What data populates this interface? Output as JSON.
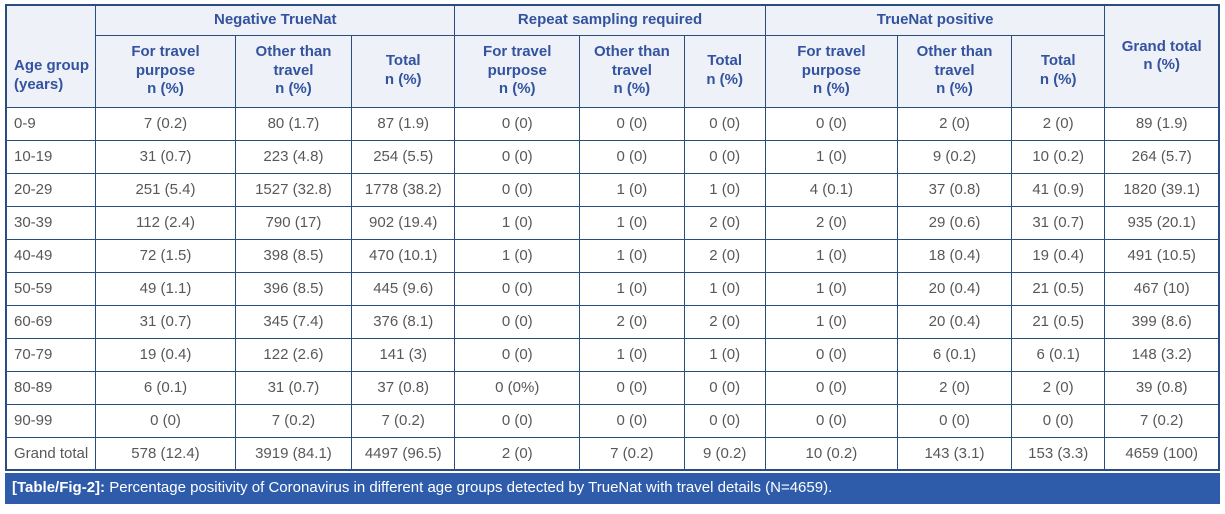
{
  "colors": {
    "border": "#2a4d7f",
    "header_bg": "#eef1f8",
    "header_text": "#33539f",
    "data_text": "#57585a",
    "caption_bg": "#2e5cab",
    "caption_text": "#ffffff"
  },
  "table": {
    "corner_header": "Age group\n(years)",
    "col_groups": [
      {
        "label": "Negative TrueNat"
      },
      {
        "label": "Repeat sampling required"
      },
      {
        "label": "TrueNat positive"
      }
    ],
    "sub_headers": [
      "For travel\npurpose\nn (%)",
      "Other than\ntravel\nn (%)",
      "Total\nn (%)"
    ],
    "grand_total_header": "Grand total\nn (%)",
    "rows": [
      {
        "age": "0-9",
        "values": [
          "7 (0.2)",
          "80 (1.7)",
          "87 (1.9)",
          "0 (0)",
          "0 (0)",
          "0 (0)",
          "0 (0)",
          "2 (0)",
          "2 (0)",
          "89 (1.9)"
        ]
      },
      {
        "age": "10-19",
        "values": [
          "31 (0.7)",
          "223 (4.8)",
          "254 (5.5)",
          "0 (0)",
          "0 (0)",
          "0 (0)",
          "1 (0)",
          "9 (0.2)",
          "10 (0.2)",
          "264 (5.7)"
        ]
      },
      {
        "age": "20-29",
        "values": [
          "251 (5.4)",
          "1527 (32.8)",
          "1778 (38.2)",
          "0 (0)",
          "1 (0)",
          "1 (0)",
          "4 (0.1)",
          "37 (0.8)",
          "41 (0.9)",
          "1820 (39.1)"
        ]
      },
      {
        "age": "30-39",
        "values": [
          "112 (2.4)",
          "790 (17)",
          "902 (19.4)",
          "1 (0)",
          "1 (0)",
          "2 (0)",
          "2 (0)",
          "29 (0.6)",
          "31 (0.7)",
          "935 (20.1)"
        ]
      },
      {
        "age": "40-49",
        "values": [
          "72 (1.5)",
          "398 (8.5)",
          "470 (10.1)",
          "1 (0)",
          "1 (0)",
          "2 (0)",
          "1 (0)",
          "18 (0.4)",
          "19 (0.4)",
          "491 (10.5)"
        ]
      },
      {
        "age": "50-59",
        "values": [
          "49 (1.1)",
          "396 (8.5)",
          "445 (9.6)",
          "0 (0)",
          "1 (0)",
          "1 (0)",
          "1 (0)",
          "20 (0.4)",
          "21 (0.5)",
          "467 (10)"
        ]
      },
      {
        "age": "60-69",
        "values": [
          "31 (0.7)",
          "345 (7.4)",
          "376 (8.1)",
          "0 (0)",
          "2 (0)",
          "2 (0)",
          "1 (0)",
          "20 (0.4)",
          "21 (0.5)",
          "399 (8.6)"
        ]
      },
      {
        "age": "70-79",
        "values": [
          "19 (0.4)",
          "122 (2.6)",
          "141 (3)",
          "0 (0)",
          "1 (0)",
          "1 (0)",
          "0 (0)",
          "6 (0.1)",
          "6 (0.1)",
          "148 (3.2)"
        ]
      },
      {
        "age": "80-89",
        "values": [
          "6 (0.1)",
          "31 (0.7)",
          "37 (0.8)",
          "0 (0%)",
          "0 (0)",
          "0 (0)",
          "0 (0)",
          "2 (0)",
          "2 (0)",
          "39 (0.8)"
        ]
      },
      {
        "age": "90-99",
        "values": [
          "0 (0)",
          "7 (0.2)",
          "7 (0.2)",
          "0 (0)",
          "0 (0)",
          "0 (0)",
          "0 (0)",
          "0 (0)",
          "0 (0)",
          "7 (0.2)"
        ]
      },
      {
        "age": "Grand total",
        "values": [
          "578 (12.4)",
          "3919 (84.1)",
          "4497 (96.5)",
          "2 (0)",
          "7 (0.2)",
          "9 (0.2)",
          "10 (0.2)",
          "143 (3.1)",
          "153 (3.3)",
          "4659 (100)"
        ]
      }
    ]
  },
  "caption": {
    "label": "[Table/Fig-2]:",
    "text": "Percentage positivity of Coronavirus in different age groups detected by TrueNat with travel details (N=4659)."
  }
}
